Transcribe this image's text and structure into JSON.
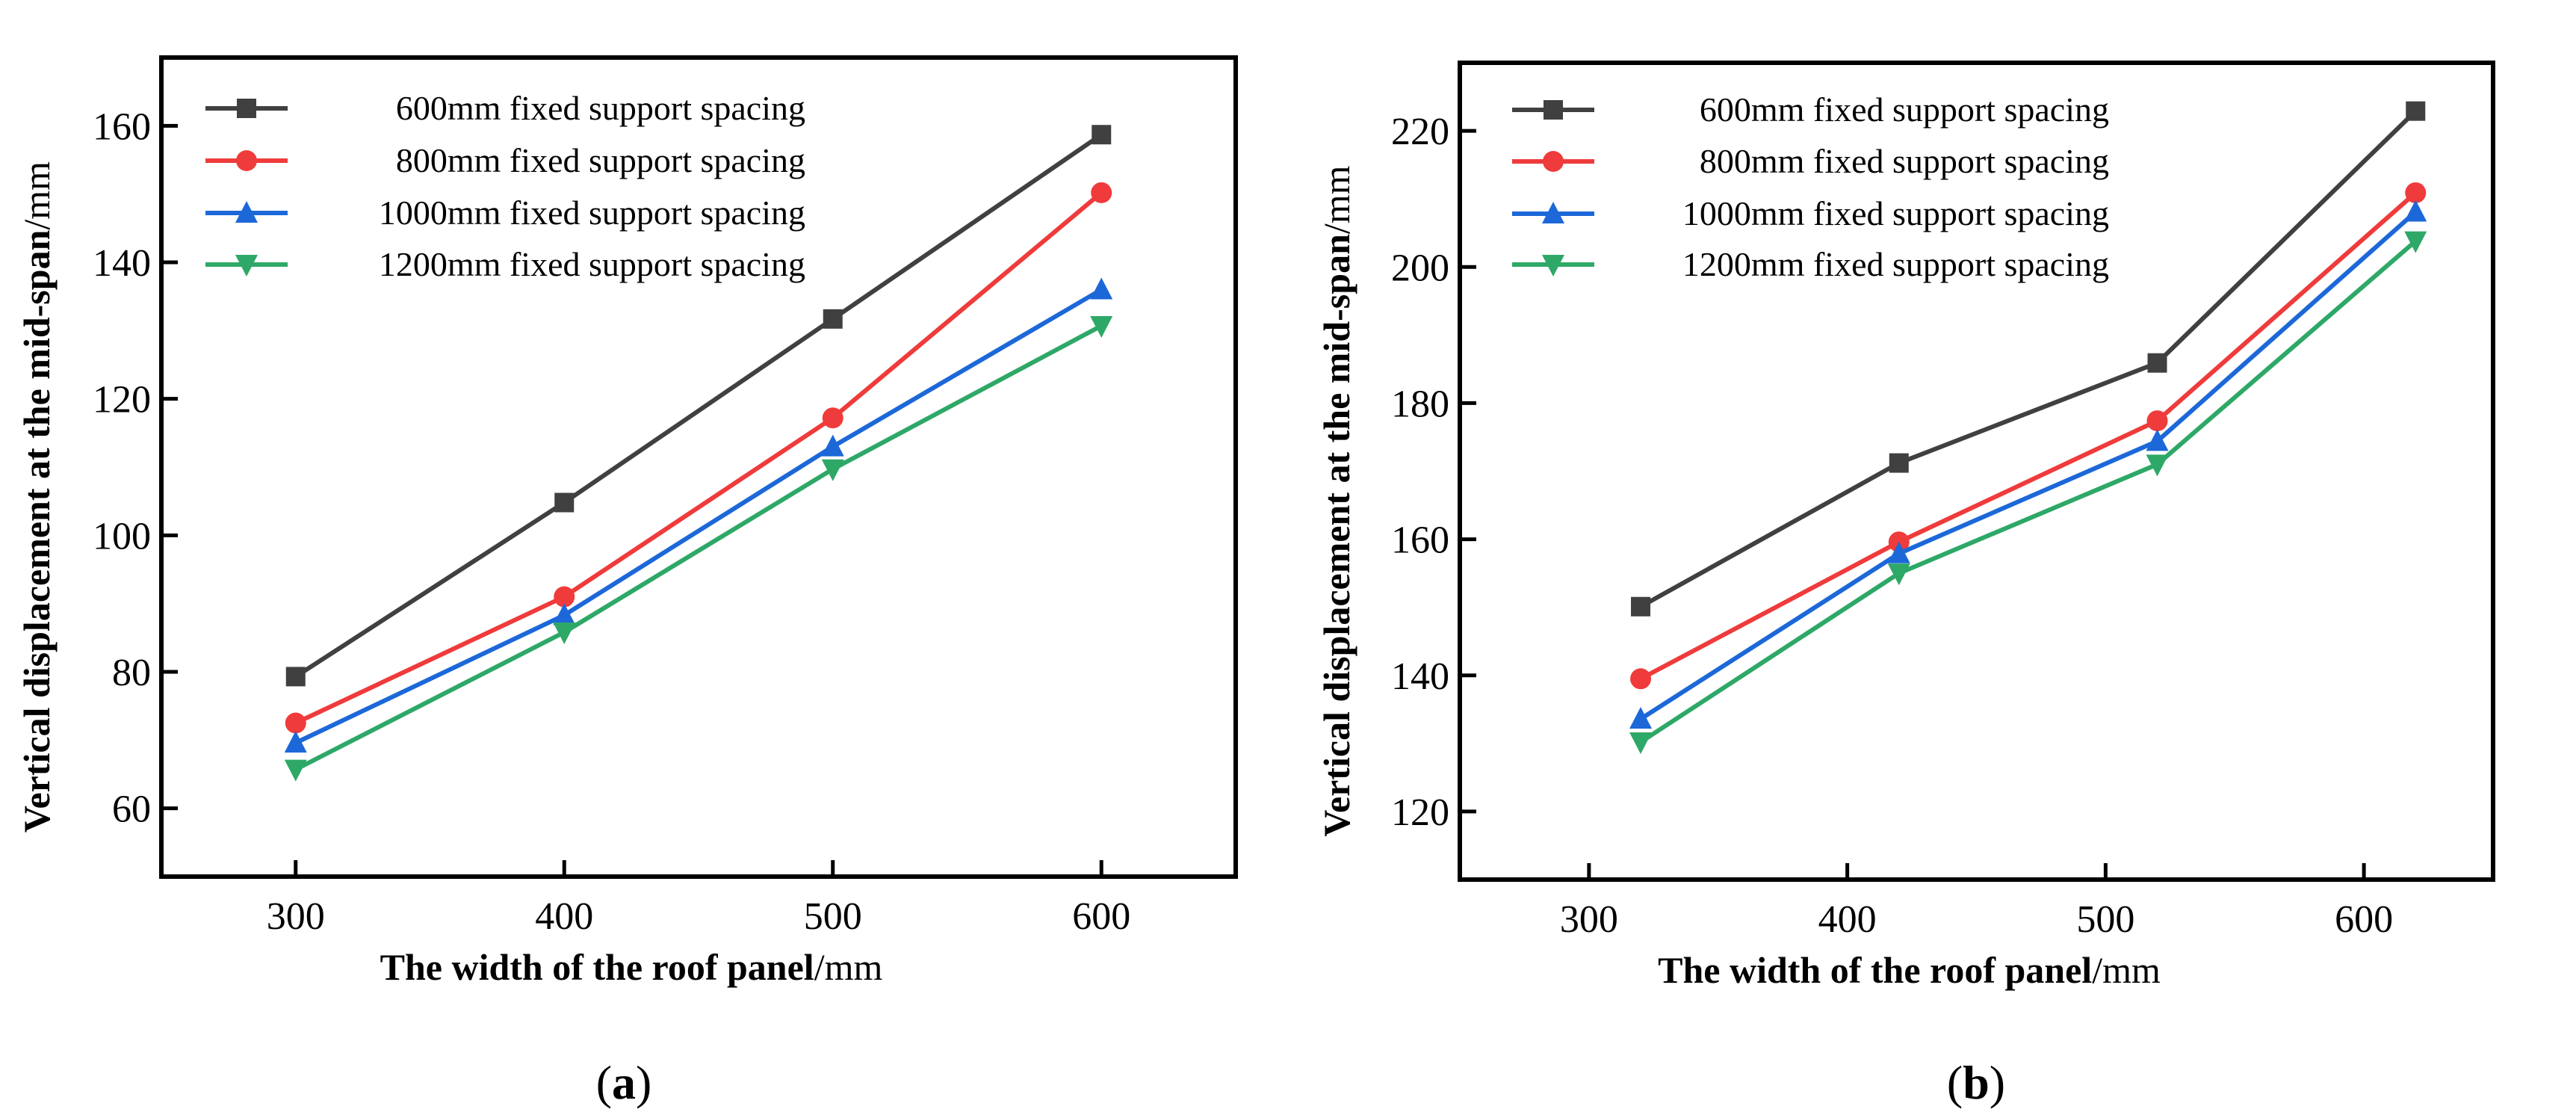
{
  "chart_data": [
    {
      "type": "line",
      "panel_label": "a",
      "xlabel": "The width of the roof panel",
      "xlabel_unit": "/mm",
      "ylabel": "Vertical displacement at the mid-span",
      "ylabel_unit": "/mm",
      "xlim": [
        250,
        650
      ],
      "ylim": [
        50,
        170
      ],
      "xticks": [
        300,
        400,
        500,
        600
      ],
      "yticks": [
        60,
        80,
        100,
        120,
        140,
        160
      ],
      "grid": false,
      "legend_position": "top-left",
      "x": [
        300,
        400,
        500,
        600
      ],
      "series": [
        {
          "name": " 600mm fixed support spacing",
          "color": "#404040",
          "marker": "square",
          "values": [
            79.3,
            104.8,
            131.7,
            158.7
          ]
        },
        {
          "name": " 800mm fixed support spacing",
          "color": "#ef3b3b",
          "marker": "circle",
          "values": [
            72.5,
            91.0,
            117.2,
            150.2
          ]
        },
        {
          "name": "1000mm fixed support spacing",
          "color": "#1c68d8",
          "marker": "triangle-up",
          "values": [
            69.6,
            88.3,
            113.0,
            136.0
          ]
        },
        {
          "name": "1200mm fixed support spacing",
          "color": "#2ea867",
          "marker": "triangle-down",
          "values": [
            65.7,
            85.8,
            109.7,
            130.7
          ]
        }
      ]
    },
    {
      "type": "line",
      "panel_label": "b",
      "xlabel": "The width of the roof panel",
      "xlabel_unit": "/mm",
      "ylabel": "Vertical displacement at the mid-span",
      "ylabel_unit": "/mm",
      "xlim": [
        250,
        650
      ],
      "ylim": [
        110,
        230
      ],
      "xticks": [
        300,
        400,
        500,
        600
      ],
      "yticks": [
        120,
        140,
        160,
        180,
        200,
        220
      ],
      "grid": false,
      "legend_position": "top-left",
      "x": [
        320,
        420,
        520,
        620
      ],
      "series": [
        {
          "name": " 600mm fixed support spacing",
          "color": "#404040",
          "marker": "square",
          "values": [
            150.1,
            171.2,
            185.9,
            222.9
          ]
        },
        {
          "name": " 800mm fixed support spacing",
          "color": "#ef3b3b",
          "marker": "circle",
          "values": [
            139.5,
            159.6,
            177.4,
            210.9
          ]
        },
        {
          "name": "1000mm fixed support spacing",
          "color": "#1c68d8",
          "marker": "triangle-up",
          "values": [
            133.6,
            157.9,
            174.4,
            208.1
          ]
        },
        {
          "name": "1200mm fixed support spacing",
          "color": "#2ea867",
          "marker": "triangle-down",
          "values": [
            130.2,
            155.0,
            171.0,
            203.8
          ]
        }
      ]
    }
  ]
}
